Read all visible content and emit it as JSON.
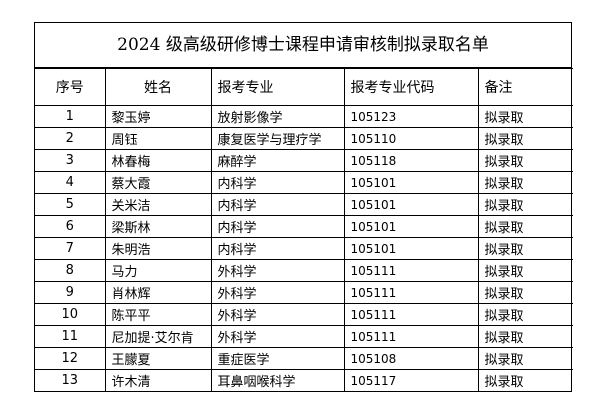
{
  "title": "2024 级高级研修博士课程申请审核制拟录取名单",
  "table": {
    "headers": [
      "序号",
      "姓名",
      "报考专业",
      "报考专业代码",
      "备注"
    ],
    "rows": [
      [
        "1",
        "黎玉婷",
        "放射影像学",
        "105123",
        "拟录取"
      ],
      [
        "2",
        "周钰",
        "康复医学与理疗学",
        "105110",
        "拟录取"
      ],
      [
        "3",
        "林春梅",
        "麻醉学",
        "105118",
        "拟录取"
      ],
      [
        "4",
        "蔡大霞",
        "内科学",
        "105101",
        "拟录取"
      ],
      [
        "5",
        "关米洁",
        "内科学",
        "105101",
        "拟录取"
      ],
      [
        "6",
        "梁斯林",
        "内科学",
        "105101",
        "拟录取"
      ],
      [
        "7",
        "朱明浩",
        "内科学",
        "105101",
        "拟录取"
      ],
      [
        "8",
        "马力",
        "外科学",
        "105111",
        "拟录取"
      ],
      [
        "9",
        "肖林辉",
        "外科学",
        "105111",
        "拟录取"
      ],
      [
        "10",
        "陈平平",
        "外科学",
        "105111",
        "拟录取"
      ],
      [
        "11",
        "尼加提·艾尔肯",
        "外科学",
        "105111",
        "拟录取"
      ],
      [
        "12",
        "王朦夏",
        "重症医学",
        "105108",
        "拟录取"
      ],
      [
        "13",
        "许木清",
        "耳鼻咽喉科学",
        "105117",
        "拟录取"
      ]
    ]
  }
}
